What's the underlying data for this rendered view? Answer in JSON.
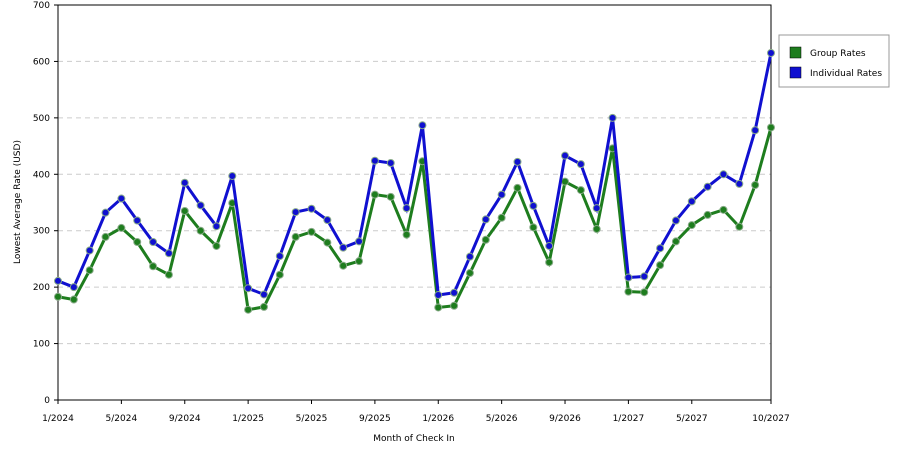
{
  "chart_data": {
    "type": "line",
    "x_label": "Month of Check In",
    "y_label": "Lowest Average Rate (USD)",
    "categories": [
      "1/2024",
      null,
      null,
      null,
      "5/2024",
      null,
      null,
      null,
      "9/2024",
      null,
      null,
      null,
      "1/2025",
      null,
      null,
      null,
      "5/2025",
      null,
      null,
      null,
      "9/2025",
      null,
      null,
      null,
      "1/2026",
      null,
      null,
      null,
      "5/2026",
      null,
      null,
      null,
      "9/2026",
      null,
      null,
      null,
      "1/2027",
      null,
      null,
      null,
      "5/2027",
      null,
      null,
      null,
      null,
      "10/2027"
    ],
    "series": [
      {
        "name": "Group Rates",
        "color": "#1e7d1e",
        "values": [
          183,
          178,
          230,
          289,
          305,
          280,
          237,
          222,
          335,
          300,
          273,
          349,
          160,
          165,
          222,
          289,
          298,
          279,
          238,
          246,
          364,
          360,
          293,
          423,
          164,
          167,
          225,
          284,
          323,
          376,
          306,
          244,
          387,
          372,
          303,
          446,
          192,
          191,
          239,
          281,
          310,
          328,
          337,
          307,
          381,
          483
        ]
      },
      {
        "name": "Individual Rates",
        "color": "#1010d0",
        "values": [
          211,
          200,
          265,
          332,
          357,
          318,
          280,
          260,
          385,
          345,
          308,
          397,
          198,
          187,
          255,
          333,
          339,
          319,
          270,
          281,
          424,
          420,
          340,
          487,
          186,
          190,
          254,
          320,
          364,
          422,
          344,
          273,
          433,
          418,
          340,
          500,
          217,
          219,
          269,
          318,
          352,
          378,
          400,
          383,
          478,
          615
        ]
      }
    ],
    "ylim": [
      0,
      700
    ],
    "yticks": [
      0,
      100,
      200,
      300,
      400,
      500,
      600,
      700
    ],
    "grid": true,
    "legend": "right"
  }
}
